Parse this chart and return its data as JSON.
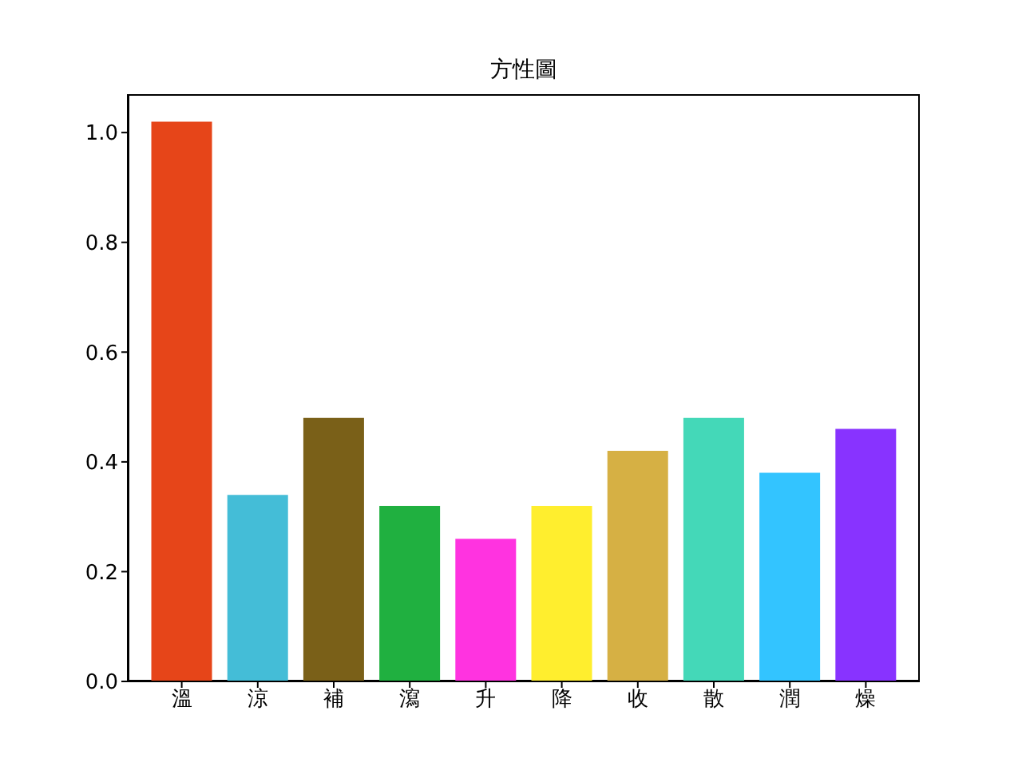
{
  "chart_data": {
    "type": "bar",
    "title": "方性圖",
    "categories": [
      "溫",
      "涼",
      "補",
      "瀉",
      "升",
      "降",
      "收",
      "散",
      "潤",
      "燥"
    ],
    "values": [
      1.02,
      0.34,
      0.48,
      0.32,
      0.26,
      0.32,
      0.42,
      0.48,
      0.38,
      0.46
    ],
    "colors": [
      "#e64519",
      "#44bdd7",
      "#7a6018",
      "#20b040",
      "#ff33e0",
      "#ffee2e",
      "#d6b044",
      "#44d8b8",
      "#33c4ff",
      "#8833ff"
    ],
    "ylim": [
      0,
      1.07
    ],
    "yticks": [
      {
        "value": 0,
        "label": "0.0"
      },
      0.2,
      0.4,
      0.6,
      0.8,
      {
        "value": 1,
        "label": "1.0"
      }
    ],
    "grid": false
  }
}
